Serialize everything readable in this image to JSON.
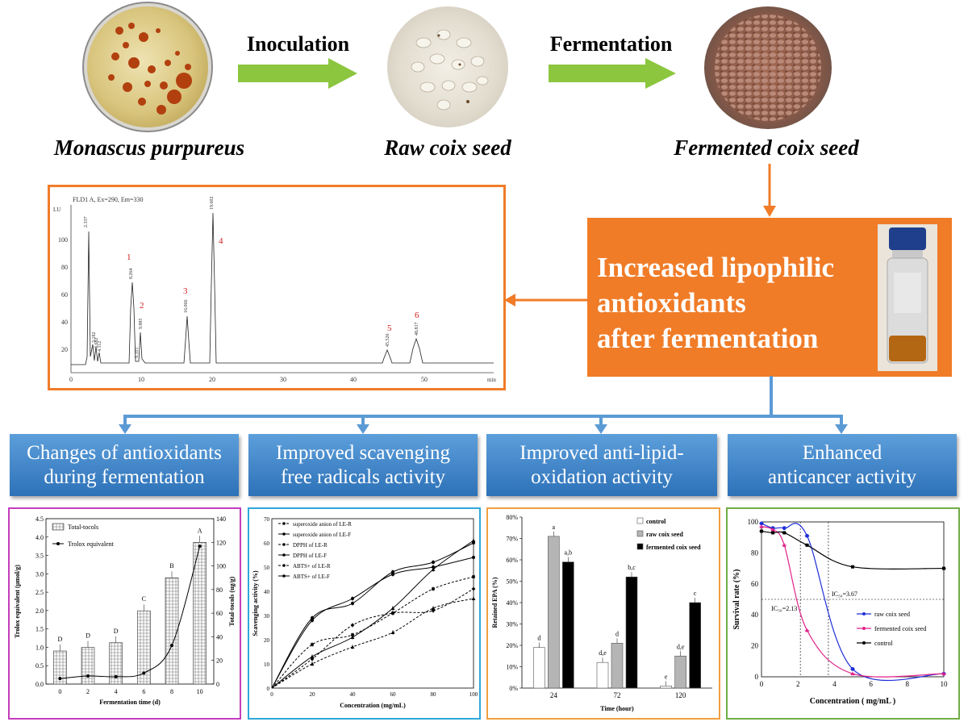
{
  "workflow": {
    "step_arrow_1_label": "Inoculation",
    "step_arrow_2_label": "Fermentation",
    "images": [
      {
        "caption": "Monascus purpureus"
      },
      {
        "caption": "Raw coix seed"
      },
      {
        "caption": "Fermented coix seed"
      }
    ]
  },
  "chromatogram": {
    "header": "FLD1 A, Ex=290, Em=330",
    "y_unit": "LU",
    "x_unit": "min",
    "y_ticks": [
      "100",
      "80",
      "60",
      "40",
      "20"
    ],
    "x_ticks": [
      "0",
      "10",
      "20",
      "30",
      "40",
      "50"
    ],
    "peak_numbers": [
      "1",
      "2",
      "3",
      "4",
      "5",
      "6"
    ],
    "peak_times": [
      "2.337",
      "8.264",
      "9.885",
      "16.066",
      "19.602",
      "45.526",
      "48.817",
      "3.182",
      "3.682",
      "4.112",
      "9.101"
    ]
  },
  "result_box": {
    "lines": [
      "Increased lipophilic",
      "antioxidants",
      "after fermentation"
    ]
  },
  "sections": [
    {
      "title": "Changes of antioxidants during fermentation"
    },
    {
      "title": "Improved scavenging free radicals activity"
    },
    {
      "title": "Improved anti-lipid-oxidation activity"
    },
    {
      "title": "Enhanced anticancer activity"
    }
  ],
  "colors": {
    "green_arrow": "#8cc63f",
    "orange": "#f07c28",
    "blue_connector": "#5b9bd5",
    "blue_button": "#3a7fc4",
    "chart1_border": "#c43dbd",
    "chart2_border": "#2ea8d8",
    "chart3_border": "#f0a040",
    "chart4_border": "#70ad47"
  },
  "chart_data": [
    {
      "type": "bar",
      "xlabel": "Fermentation time (d)",
      "ylabel": "Trolox equivalent (μmol/g)",
      "ylabel_right": "Total-tocols (ug/g)",
      "categories": [
        "0",
        "2",
        "4",
        "6",
        "8",
        "10"
      ],
      "y_ticks": [
        "0.0",
        "0.5",
        "1.0",
        "1.5",
        "2.0",
        "2.5",
        "3.0",
        "3.5",
        "4.0",
        "4.5"
      ],
      "y2_ticks": [
        "0",
        "20",
        "40",
        "60",
        "80",
        "100",
        "120",
        "140"
      ],
      "ylim": [
        0,
        4.5
      ],
      "y2lim": [
        0,
        140
      ],
      "series": [
        {
          "name": "Total-tocols",
          "values": [
            28,
            31,
            35,
            62,
            90,
            120
          ],
          "axis": "right",
          "letters": [
            "D",
            "D",
            "D",
            "C",
            "B",
            "A"
          ]
        },
        {
          "name": "Trolox equivalent",
          "values": [
            0.15,
            0.22,
            0.2,
            0.3,
            1.05,
            3.75
          ],
          "axis": "left"
        }
      ]
    },
    {
      "type": "line",
      "xlabel": "Concentration (mg/mL)",
      "ylabel": "Scavenging activity (%)",
      "x": [
        0,
        20,
        40,
        60,
        80,
        100
      ],
      "x_ticks": [
        "0",
        "20",
        "40",
        "60",
        "80",
        "100"
      ],
      "y_ticks": [
        "0",
        "10",
        "20",
        "30",
        "40",
        "50",
        "60",
        "70"
      ],
      "ylim": [
        0,
        70
      ],
      "series": [
        {
          "name": "superoxide anion of LE-R",
          "values": [
            0,
            18,
            22,
            31,
            41,
            46
          ]
        },
        {
          "name": "superoxide anion of LE-F",
          "values": [
            0,
            28,
            37,
            47,
            50,
            54
          ]
        },
        {
          "name": "DPPH of LE-R",
          "values": [
            0,
            12,
            26,
            31,
            32,
            41
          ]
        },
        {
          "name": "DPPH of LE-F",
          "values": [
            0,
            29,
            35,
            48,
            52,
            60
          ]
        },
        {
          "name": "ABTS+ of LE-R",
          "values": [
            0,
            10,
            17,
            23,
            33,
            37
          ]
        },
        {
          "name": "ABTS+ of LE-F",
          "values": [
            0,
            13,
            21,
            33,
            49,
            61
          ]
        }
      ]
    },
    {
      "type": "bar",
      "xlabel": "Time (hour)",
      "ylabel": "Retained EPA  (%)",
      "categories": [
        "24",
        "72",
        "120"
      ],
      "y_ticks": [
        "0%",
        "10%",
        "20%",
        "30%",
        "40%",
        "50%",
        "60%",
        "70%",
        "80%"
      ],
      "ylim": [
        0,
        80
      ],
      "series": [
        {
          "name": "control",
          "values": [
            19,
            12,
            1
          ],
          "letters": [
            "d",
            "d,e",
            "e"
          ]
        },
        {
          "name": "raw coix seed",
          "values": [
            71,
            21,
            15
          ],
          "letters": [
            "a",
            "d",
            "d,e"
          ]
        },
        {
          "name": "fermented coix seed",
          "values": [
            59,
            52,
            40
          ],
          "letters": [
            "a,b",
            "b,c",
            "c"
          ]
        }
      ]
    },
    {
      "type": "line",
      "xlabel": "Concentration ( mg/mL )",
      "ylabel": "Survival rate (%)",
      "x_ticks": [
        "0",
        "2",
        "4",
        "6",
        "8",
        "10"
      ],
      "y_ticks": [
        "0",
        "20",
        "40",
        "60",
        "80",
        "100"
      ],
      "ylim": [
        0,
        100
      ],
      "annotations": [
        "IC₅₀=3.67",
        "IC₅₀=2.13"
      ],
      "series": [
        {
          "name": "raw coix seed",
          "x": [
            0,
            0.625,
            1.25,
            2.5,
            5,
            10
          ],
          "values": [
            99,
            96,
            96,
            91,
            5,
            2
          ]
        },
        {
          "name": "fermented coix seed",
          "x": [
            0,
            0.625,
            1.25,
            2.5,
            5,
            10
          ],
          "values": [
            97,
            95,
            85,
            30,
            2,
            2
          ]
        },
        {
          "name": "control",
          "x": [
            0,
            0.625,
            1.25,
            2.5,
            5,
            10
          ],
          "values": [
            94,
            93,
            93,
            85,
            71,
            70
          ]
        }
      ]
    }
  ]
}
